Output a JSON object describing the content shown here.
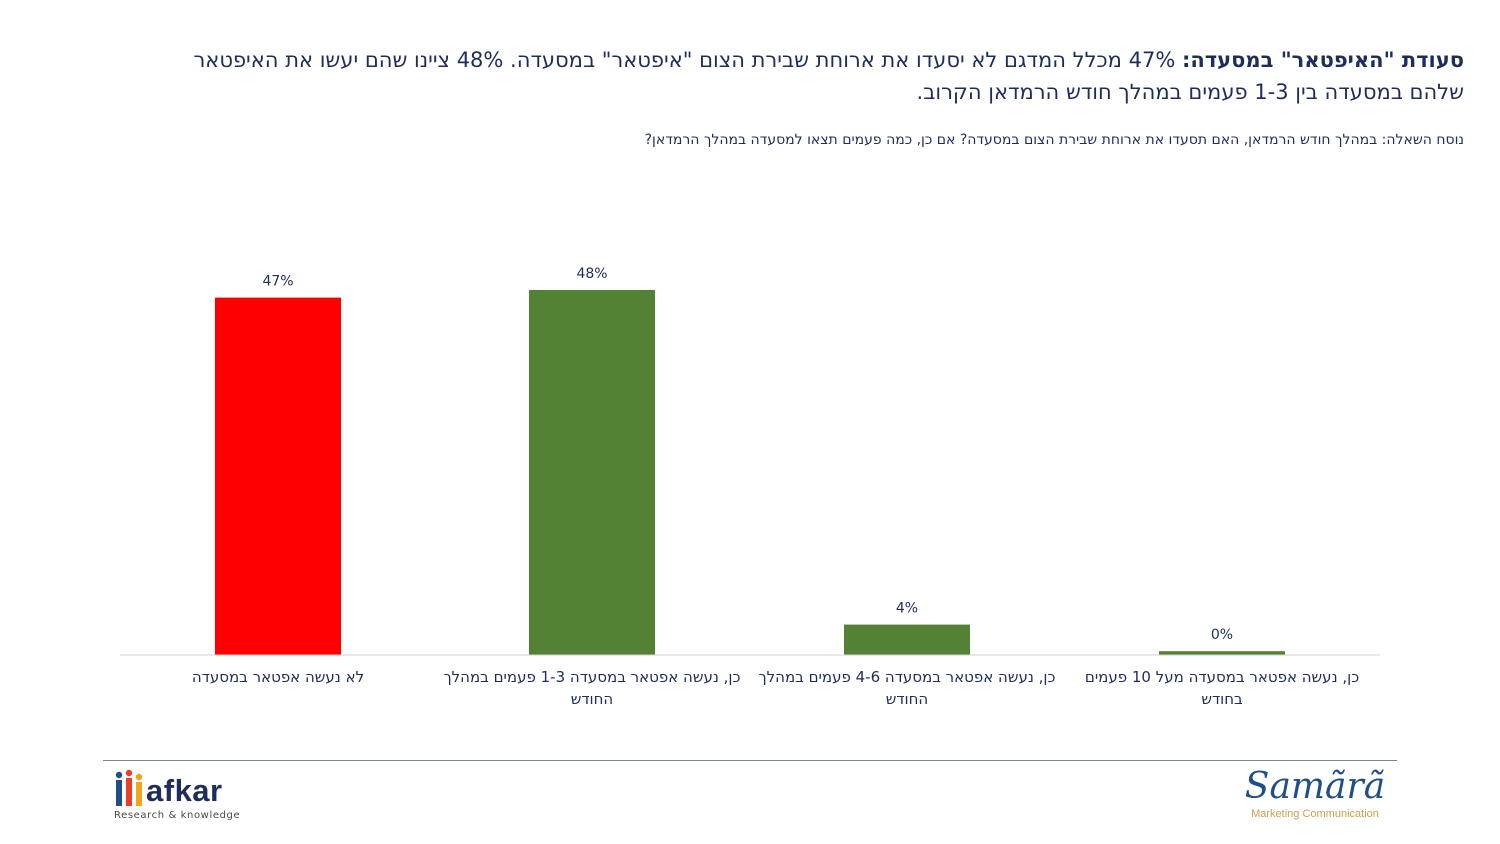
{
  "slide": {
    "title_bold": "סעודת \"האיפטאר\" במסעדה:",
    "title_rest": " 47% מכלל המדגם לא יסעדו את ארוחת שבירת הצום \"איפטאר\" במסעדה. 48% ציינו שהם יעשו את האיפטאר שלהם במסעדה בין 1-3 פעמים במהלך חודש הרמדאן הקרוב.",
    "question": "נוסח השאלה: במהלך חודש הרמדאן, האם תסעדו את ארוחת שבירת הצום במסעדה? אם כן, כמה פעמים תצאו למסעדה במהלך הרמדאן?"
  },
  "chart_data": {
    "type": "bar",
    "categories": [
      "לא נעשה אפטאר במסעדה",
      "כן, נעשה אפטאר במסעדה 1-3 פעמים במהלך החודש",
      "כן, נעשה אפטאר במסעדה 4-6 פעמים במהלך החודש",
      "כן, נעשה אפטאר במסעדה מעל 10 פעמים בחודש"
    ],
    "values": [
      47,
      48,
      4,
      0.5
    ],
    "data_labels": [
      "47%",
      "48%",
      "4%",
      "0%"
    ],
    "colors": [
      "#ff0000",
      "#548235",
      "#548235",
      "#548235"
    ],
    "ylim": [
      0,
      50
    ],
    "grid": false,
    "legend": false
  },
  "logos": {
    "left_name": "afkar",
    "left_tagline": "Research & knowledge",
    "right_name": "Samãrã",
    "right_tagline": "Marketing Communication"
  }
}
